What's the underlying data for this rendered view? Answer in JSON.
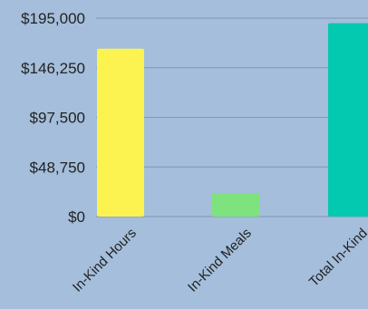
{
  "chart_data": {
    "type": "bar",
    "categories": [
      "In-Kind Hours",
      "In-Kind Meals",
      "Total In-Kind"
    ],
    "values": [
      165000,
      23000,
      190000
    ],
    "yticks": [
      "$0",
      "$48,750",
      "$97,500",
      "$146,250",
      "$195,000"
    ],
    "ytick_values": [
      0,
      48750,
      97500,
      146250,
      195000
    ],
    "ylim": [
      0,
      195000
    ],
    "grid": true,
    "colors": {
      "background": "#a4bedb",
      "gridline": "#7f97b8",
      "bars": [
        "#fdf350",
        "#7ee27e",
        "#02c9b0"
      ]
    }
  }
}
